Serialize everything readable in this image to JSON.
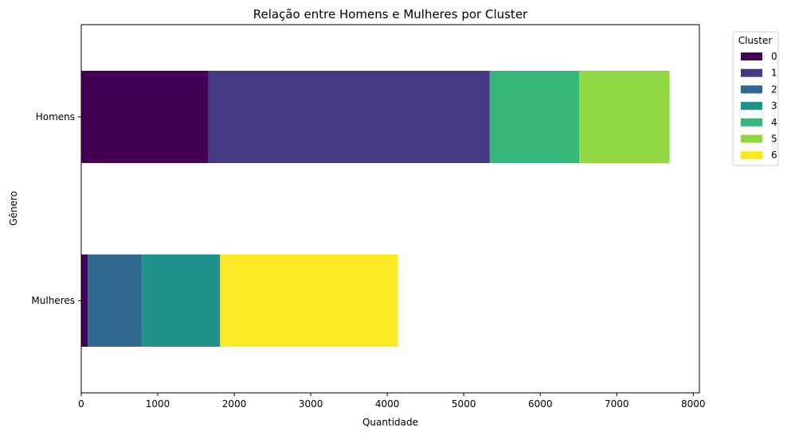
{
  "chart_data": {
    "type": "bar",
    "orientation": "horizontal",
    "stacked": true,
    "title": "Relação entre Homens e Mulheres por Cluster",
    "xlabel": "Quantidade",
    "ylabel": "Gênero",
    "xlim": [
      0,
      8080
    ],
    "xticks": [
      "0",
      "1000",
      "2000",
      "3000",
      "4000",
      "5000",
      "6000",
      "7000",
      "8000"
    ],
    "categories": [
      "Homens",
      "Mulheres"
    ],
    "grid": false,
    "legend": {
      "title": "Cluster",
      "placement": "outside-top-right"
    },
    "series": [
      {
        "name": "0",
        "color": "#440154",
        "values": [
          1660,
          85
        ]
      },
      {
        "name": "1",
        "color": "#443983",
        "values": [
          3680,
          0
        ]
      },
      {
        "name": "2",
        "color": "#31688e",
        "values": [
          0,
          710
        ]
      },
      {
        "name": "3",
        "color": "#21918c",
        "values": [
          0,
          1020
        ]
      },
      {
        "name": "4",
        "color": "#35b779",
        "values": [
          1170,
          0
        ]
      },
      {
        "name": "5",
        "color": "#90d743",
        "values": [
          1180,
          0
        ]
      },
      {
        "name": "6",
        "color": "#fde725",
        "values": [
          0,
          2320
        ]
      }
    ]
  }
}
